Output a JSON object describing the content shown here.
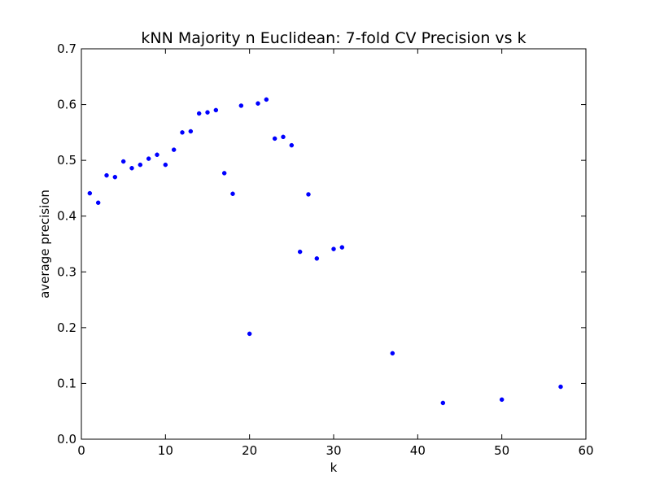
{
  "chart_data": {
    "type": "scatter",
    "title": "kNN Majority n Euclidean: 7-fold CV Precision vs k",
    "xlabel": "k",
    "ylabel": "average precision",
    "xlim": [
      0,
      60
    ],
    "ylim": [
      0.0,
      0.7
    ],
    "x_ticks": [
      "0",
      "10",
      "20",
      "30",
      "40",
      "50",
      "60"
    ],
    "y_ticks": [
      "0.0",
      "0.1",
      "0.2",
      "0.3",
      "0.4",
      "0.5",
      "0.6",
      "0.7"
    ],
    "grid": false,
    "legend": "none",
    "marker_color": "#0000ff",
    "points": [
      {
        "x": 1,
        "y": 0.441
      },
      {
        "x": 2,
        "y": 0.424
      },
      {
        "x": 3,
        "y": 0.473
      },
      {
        "x": 4,
        "y": 0.47
      },
      {
        "x": 5,
        "y": 0.498
      },
      {
        "x": 6,
        "y": 0.486
      },
      {
        "x": 7,
        "y": 0.492
      },
      {
        "x": 8,
        "y": 0.503
      },
      {
        "x": 9,
        "y": 0.51
      },
      {
        "x": 10,
        "y": 0.492
      },
      {
        "x": 11,
        "y": 0.519
      },
      {
        "x": 12,
        "y": 0.55
      },
      {
        "x": 13,
        "y": 0.552
      },
      {
        "x": 14,
        "y": 0.584
      },
      {
        "x": 15,
        "y": 0.586
      },
      {
        "x": 16,
        "y": 0.59
      },
      {
        "x": 17,
        "y": 0.477
      },
      {
        "x": 18,
        "y": 0.44
      },
      {
        "x": 19,
        "y": 0.598
      },
      {
        "x": 20,
        "y": 0.189
      },
      {
        "x": 21,
        "y": 0.602
      },
      {
        "x": 22,
        "y": 0.609
      },
      {
        "x": 23,
        "y": 0.539
      },
      {
        "x": 24,
        "y": 0.542
      },
      {
        "x": 25,
        "y": 0.527
      },
      {
        "x": 26,
        "y": 0.336
      },
      {
        "x": 27,
        "y": 0.439
      },
      {
        "x": 28,
        "y": 0.324
      },
      {
        "x": 30,
        "y": 0.341
      },
      {
        "x": 31,
        "y": 0.344
      },
      {
        "x": 37,
        "y": 0.154
      },
      {
        "x": 43,
        "y": 0.065
      },
      {
        "x": 50,
        "y": 0.071
      },
      {
        "x": 57,
        "y": 0.094
      }
    ]
  }
}
